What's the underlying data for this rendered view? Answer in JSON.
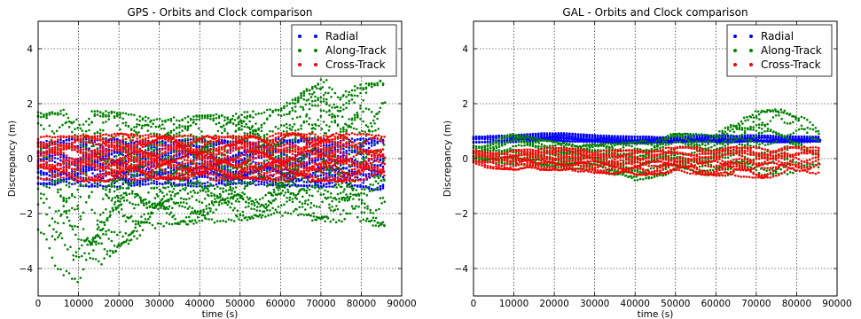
{
  "chart_data": [
    {
      "type": "scatter",
      "title": "GPS - Orbits and Clock comparison",
      "xlabel": "time (s)",
      "ylabel": "Discrepancy (m)",
      "xlim": [
        0,
        90000
      ],
      "ylim": [
        -5,
        5
      ],
      "xticks": [
        0,
        10000,
        20000,
        30000,
        40000,
        50000,
        60000,
        70000,
        80000,
        90000
      ],
      "xtick_labels": [
        "0",
        "10000",
        "20000",
        "30000",
        "40000",
        "50000",
        "60000",
        "70000",
        "80000",
        "90000"
      ],
      "yticks": [
        -4,
        -2,
        0,
        2,
        4
      ],
      "ytick_labels": [
        "−4",
        "−2",
        "0",
        "2",
        "4"
      ],
      "grid": true,
      "legend": "top-right",
      "series": [
        {
          "name": "Radial",
          "color": "#0000ff",
          "x": [
            0,
            10000,
            20000,
            30000,
            40000,
            50000,
            60000,
            70000,
            80000,
            86000
          ],
          "y_upper": [
            0.6,
            0.7,
            0.7,
            0.6,
            0.7,
            0.6,
            0.7,
            0.7,
            0.7,
            0.7
          ],
          "y_lower": [
            -0.9,
            -1.0,
            -1.0,
            -0.9,
            -1.0,
            -0.9,
            -1.0,
            -1.0,
            -1.0,
            -1.2
          ]
        },
        {
          "name": "Along-Track",
          "color": "#008000",
          "x": [
            0,
            10000,
            20000,
            30000,
            40000,
            50000,
            60000,
            70000,
            80000,
            86000
          ],
          "y_upper": [
            1.6,
            1.7,
            1.6,
            1.4,
            1.5,
            1.6,
            1.8,
            2.8,
            2.6,
            2.8
          ],
          "y_lower": [
            -3.5,
            -4.5,
            -3.2,
            -2.4,
            -2.3,
            -2.2,
            -2.0,
            -2.2,
            -2.3,
            -2.4
          ]
        },
        {
          "name": "Cross-Track",
          "color": "#ff0000",
          "x": [
            0,
            10000,
            20000,
            30000,
            40000,
            50000,
            60000,
            70000,
            80000,
            86000
          ],
          "y_upper": [
            0.8,
            0.8,
            0.9,
            0.8,
            0.8,
            0.8,
            0.9,
            0.9,
            0.9,
            0.8
          ],
          "y_lower": [
            -0.7,
            -0.8,
            -0.8,
            -0.7,
            -0.8,
            -0.7,
            -0.8,
            -0.8,
            -0.8,
            -0.7
          ]
        }
      ]
    },
    {
      "type": "scatter",
      "title": "GAL - Orbits and Clock comparison",
      "xlabel": "time (s)",
      "ylabel": "Discrepancy (m)",
      "xlim": [
        0,
        90000
      ],
      "ylim": [
        -5,
        5
      ],
      "xticks": [
        0,
        10000,
        20000,
        30000,
        40000,
        50000,
        60000,
        70000,
        80000,
        90000
      ],
      "xtick_labels": [
        "0",
        "10000",
        "20000",
        "30000",
        "40000",
        "50000",
        "60000",
        "70000",
        "80000",
        "90000"
      ],
      "yticks": [
        -4,
        -2,
        0,
        2,
        4
      ],
      "ytick_labels": [
        "−4",
        "−2",
        "0",
        "2",
        "4"
      ],
      "grid": true,
      "legend": "top-right",
      "series": [
        {
          "name": "Radial",
          "color": "#0000ff",
          "x": [
            0,
            10000,
            20000,
            30000,
            40000,
            50000,
            60000,
            70000,
            80000,
            86000
          ],
          "y_upper": [
            0.8,
            0.85,
            0.95,
            0.85,
            0.8,
            0.8,
            0.85,
            0.85,
            0.8,
            0.8
          ],
          "y_lower": [
            0.55,
            0.6,
            0.65,
            0.6,
            0.55,
            0.6,
            0.6,
            0.6,
            0.6,
            0.6
          ]
        },
        {
          "name": "Along-Track",
          "color": "#008000",
          "x": [
            0,
            10000,
            20000,
            30000,
            40000,
            50000,
            60000,
            70000,
            80000,
            86000
          ],
          "y_upper": [
            0.5,
            0.9,
            0.6,
            0.5,
            0.6,
            0.9,
            0.9,
            1.7,
            1.8,
            0.9
          ],
          "y_lower": [
            -0.1,
            -0.2,
            -0.3,
            -0.4,
            -0.8,
            -0.5,
            -0.6,
            -0.6,
            -0.5,
            -0.4
          ]
        },
        {
          "name": "Cross-Track",
          "color": "#ff0000",
          "x": [
            0,
            10000,
            20000,
            30000,
            40000,
            50000,
            60000,
            70000,
            80000,
            86000
          ],
          "y_upper": [
            0.3,
            0.3,
            0.4,
            0.3,
            0.3,
            0.4,
            0.4,
            0.4,
            0.4,
            0.4
          ],
          "y_lower": [
            -0.3,
            -0.4,
            -0.4,
            -0.5,
            -0.6,
            -0.5,
            -0.6,
            -0.7,
            -0.7,
            -0.6
          ]
        }
      ]
    }
  ]
}
